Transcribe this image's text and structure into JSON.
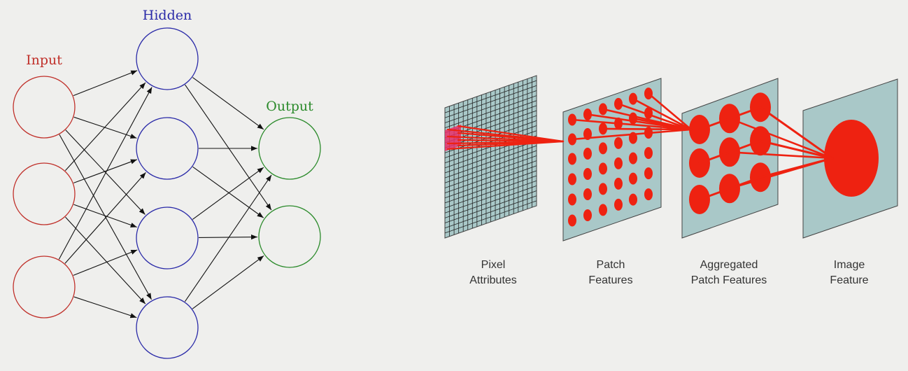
{
  "network": {
    "layers": [
      {
        "label": "Input",
        "nodes": 3,
        "color": "#c0302a"
      },
      {
        "label": "Hidden",
        "nodes": 4,
        "color": "#2a2aa8"
      },
      {
        "label": "Output",
        "nodes": 2,
        "color": "#2a8a2a"
      }
    ],
    "edge_color": "#111111"
  },
  "pipeline": {
    "stages": [
      {
        "label_line1": "Pixel",
        "label_line2": "Attributes"
      },
      {
        "label_line1": "Patch",
        "label_line2": "Features"
      },
      {
        "label_line1": "Aggregated",
        "label_line2": "Patch Features"
      },
      {
        "label_line1": "Image",
        "label_line2": "Feature"
      }
    ],
    "panel_color": "#a9c8c8",
    "feature_color": "#ee2211",
    "grid_color": "#222222",
    "label_color": "#333333"
  }
}
